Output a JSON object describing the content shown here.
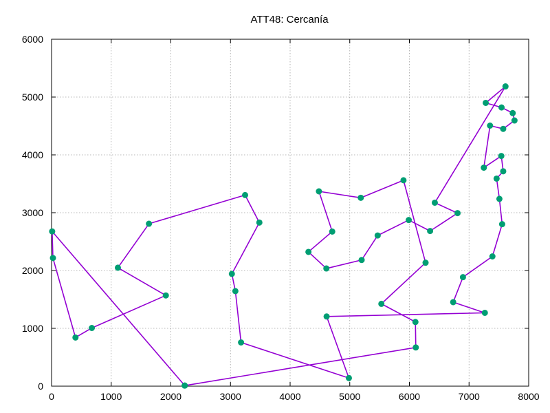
{
  "chart_data": {
    "type": "line",
    "title": "ATT48: Cercanía",
    "xlabel": "",
    "ylabel": "",
    "xlim": [
      0,
      8000
    ],
    "ylim": [
      0,
      6000
    ],
    "xticks": [
      0,
      1000,
      2000,
      3000,
      4000,
      5000,
      6000,
      7000,
      8000
    ],
    "yticks": [
      0,
      1000,
      2000,
      3000,
      4000,
      5000,
      6000
    ],
    "grid": true,
    "legend": "none",
    "line_color": "#9400d3",
    "marker_color": "#009e73",
    "series": [
      {
        "points": [
          [
            2233,
            10
          ],
          [
            6107,
            669
          ],
          [
            6101,
            1110
          ],
          [
            5530,
            1424
          ],
          [
            6271,
            2135
          ],
          [
            5901,
            3561
          ],
          [
            5185,
            3258
          ],
          [
            4483,
            3369
          ],
          [
            4706,
            2674
          ],
          [
            4307,
            2322
          ],
          [
            4608,
            2035
          ],
          [
            5199,
            2182
          ],
          [
            5468,
            2606
          ],
          [
            5989,
            2873
          ],
          [
            6347,
            2683
          ],
          [
            6807,
            2993
          ],
          [
            6426,
            3173
          ],
          [
            7611,
            5184
          ],
          [
            7280,
            4899
          ],
          [
            7545,
            4820
          ],
          [
            7732,
            4723
          ],
          [
            7762,
            4595
          ],
          [
            7573,
            4450
          ],
          [
            7352,
            4506
          ],
          [
            7248,
            3779
          ],
          [
            7541,
            3981
          ],
          [
            7573,
            3716
          ],
          [
            7462,
            3590
          ],
          [
            7509,
            3239
          ],
          [
            7555,
            2802
          ],
          [
            7392,
            2244
          ],
          [
            6898,
            1885
          ],
          [
            6734,
            1453
          ],
          [
            7265,
            1268
          ],
          [
            4612,
            1205
          ],
          [
            4985,
            140
          ],
          [
            3177,
            756
          ],
          [
            3082,
            1644
          ],
          [
            3023,
            1942
          ],
          [
            3484,
            2829
          ],
          [
            3245,
            3305
          ],
          [
            1633,
            2809
          ],
          [
            1112,
            2049
          ],
          [
            1916,
            1569
          ],
          [
            675,
            1006
          ],
          [
            401,
            841
          ],
          [
            23,
            2216
          ],
          [
            10,
            2676
          ],
          [
            2233,
            10
          ]
        ]
      }
    ]
  }
}
